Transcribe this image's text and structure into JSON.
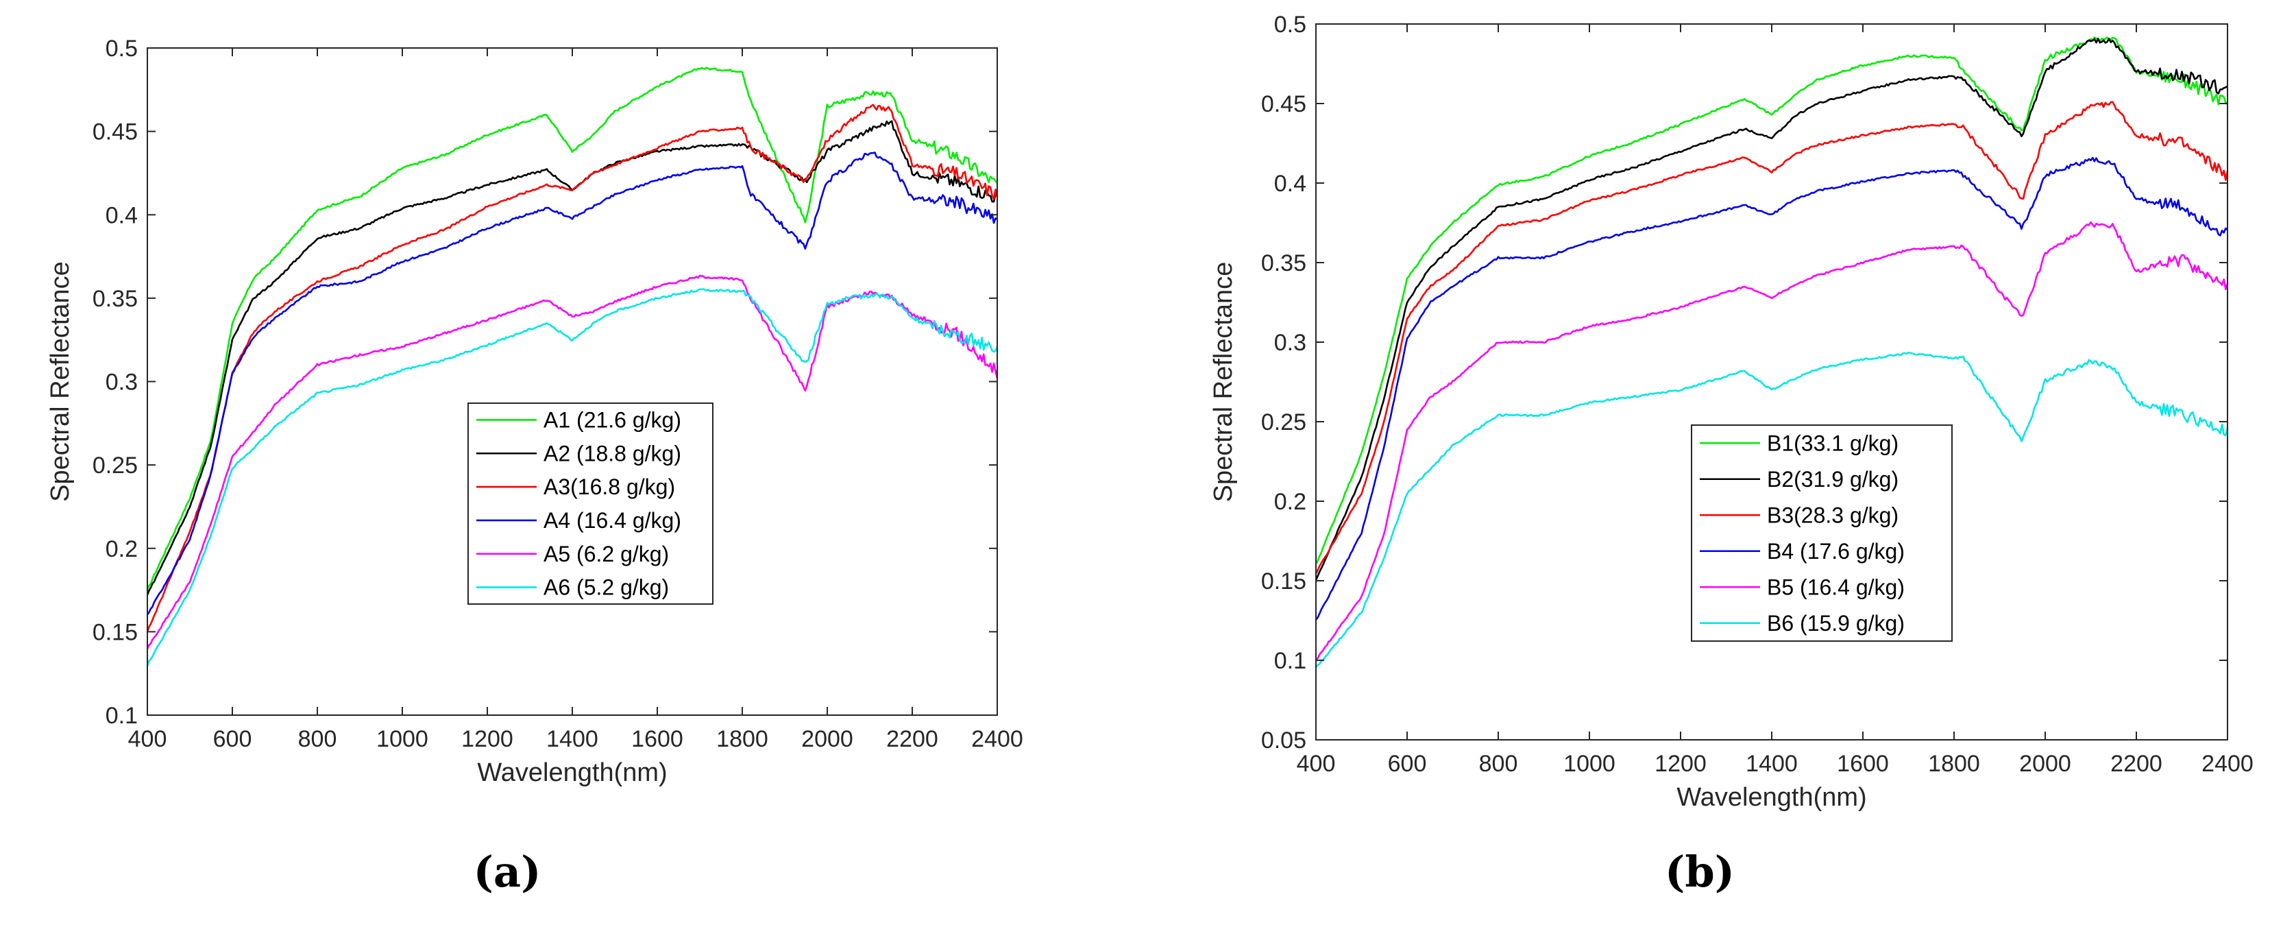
{
  "chart_data": [
    {
      "type": "line",
      "panel": "a",
      "caption": "(a)",
      "xlabel": "Wavelength(nm)",
      "ylabel": "Spectral Reflectance",
      "xlim": [
        400,
        2400
      ],
      "ylim": [
        0.1,
        0.5
      ],
      "xticks": [
        400,
        600,
        800,
        1000,
        1200,
        1400,
        1600,
        1800,
        2000,
        2200,
        2400
      ],
      "yticks": [
        0.1,
        0.15,
        0.2,
        0.25,
        0.3,
        0.35,
        0.4,
        0.45,
        0.5
      ],
      "ytick_labels": [
        "0.1",
        "0.15",
        "0.2",
        "0.25",
        "0.3",
        "0.35",
        "0.4",
        "0.45",
        "0.5"
      ],
      "x": [
        400,
        500,
        550,
        600,
        650,
        700,
        800,
        900,
        1000,
        1100,
        1200,
        1340,
        1400,
        1450,
        1500,
        1600,
        1700,
        1800,
        1820,
        1950,
        2000,
        2100,
        2150,
        2200,
        2300,
        2400
      ],
      "series": [
        {
          "name": "A1 (21.6 g/kg)",
          "color": "#00ee00",
          "values": [
            0.175,
            0.23,
            0.265,
            0.335,
            0.362,
            0.374,
            0.403,
            0.411,
            0.428,
            0.436,
            0.448,
            0.46,
            0.438,
            0.448,
            0.462,
            0.477,
            0.488,
            0.486,
            0.468,
            0.395,
            0.465,
            0.473,
            0.472,
            0.445,
            0.436,
            0.418
          ]
        },
        {
          "name": "A2 (18.8 g/kg)",
          "color": "#000000",
          "values": [
            0.172,
            0.225,
            0.262,
            0.325,
            0.35,
            0.36,
            0.386,
            0.392,
            0.404,
            0.41,
            0.418,
            0.427,
            0.415,
            0.425,
            0.431,
            0.438,
            0.441,
            0.442,
            0.44,
            0.42,
            0.438,
            0.451,
            0.456,
            0.425,
            0.42,
            0.41
          ]
        },
        {
          "name": "A3(16.8 g/kg)",
          "color": "#ff0000",
          "values": [
            0.15,
            0.21,
            0.245,
            0.305,
            0.33,
            0.342,
            0.36,
            0.369,
            0.382,
            0.391,
            0.405,
            0.418,
            0.415,
            0.425,
            0.43,
            0.44,
            0.45,
            0.452,
            0.44,
            0.42,
            0.445,
            0.465,
            0.463,
            0.43,
            0.425,
            0.412
          ]
        },
        {
          "name": "A4 (16.4 g/kg)",
          "color": "#0000ee",
          "values": [
            0.16,
            0.205,
            0.245,
            0.305,
            0.327,
            0.338,
            0.357,
            0.36,
            0.372,
            0.38,
            0.392,
            0.404,
            0.398,
            0.405,
            0.412,
            0.421,
            0.427,
            0.429,
            0.412,
            0.38,
            0.42,
            0.438,
            0.43,
            0.41,
            0.408,
            0.397
          ]
        },
        {
          "name": "A5 (6.2 g/kg)",
          "color": "#ff00ff",
          "values": [
            0.14,
            0.18,
            0.215,
            0.255,
            0.27,
            0.286,
            0.31,
            0.316,
            0.321,
            0.329,
            0.337,
            0.349,
            0.339,
            0.342,
            0.348,
            0.357,
            0.363,
            0.361,
            0.35,
            0.295,
            0.345,
            0.353,
            0.351,
            0.34,
            0.33,
            0.305
          ]
        },
        {
          "name": "A6 (5.2 g/kg)",
          "color": "#00e6e6",
          "values": [
            0.13,
            0.175,
            0.208,
            0.248,
            0.26,
            0.273,
            0.293,
            0.298,
            0.307,
            0.313,
            0.322,
            0.335,
            0.325,
            0.335,
            0.342,
            0.35,
            0.355,
            0.354,
            0.35,
            0.31,
            0.347,
            0.352,
            0.351,
            0.338,
            0.328,
            0.32
          ]
        }
      ]
    },
    {
      "type": "line",
      "panel": "b",
      "caption": "(b)",
      "xlabel": "Wavelength(nm)",
      "ylabel": "Spectral Reflectance",
      "xlim": [
        400,
        2400
      ],
      "ylim": [
        0.05,
        0.5
      ],
      "xticks": [
        400,
        600,
        800,
        1000,
        1200,
        1400,
        1600,
        1800,
        2000,
        2200,
        2400
      ],
      "yticks": [
        0.05,
        0.1,
        0.15,
        0.2,
        0.25,
        0.3,
        0.35,
        0.4,
        0.45,
        0.5
      ],
      "ytick_labels": [
        "0.05",
        "0.1",
        "0.15",
        "0.2",
        "0.25",
        "0.3",
        "0.35",
        "0.4",
        "0.45",
        "0.5"
      ],
      "x": [
        400,
        500,
        550,
        600,
        650,
        700,
        800,
        900,
        1000,
        1100,
        1200,
        1340,
        1400,
        1450,
        1500,
        1600,
        1700,
        1800,
        1820,
        1950,
        2000,
        2100,
        2150,
        2200,
        2300,
        2400
      ],
      "series": [
        {
          "name": "B1(33.1 g/kg)",
          "color": "#00ee00",
          "values": [
            0.16,
            0.23,
            0.28,
            0.34,
            0.36,
            0.375,
            0.399,
            0.404,
            0.417,
            0.426,
            0.437,
            0.453,
            0.443,
            0.455,
            0.465,
            0.474,
            0.48,
            0.479,
            0.47,
            0.432,
            0.478,
            0.49,
            0.492,
            0.47,
            0.465,
            0.45
          ]
        },
        {
          "name": "B2(31.9 g/kg)",
          "color": "#000000",
          "values": [
            0.15,
            0.215,
            0.265,
            0.325,
            0.347,
            0.36,
            0.385,
            0.39,
            0.402,
            0.41,
            0.42,
            0.434,
            0.428,
            0.442,
            0.45,
            0.458,
            0.465,
            0.467,
            0.465,
            0.43,
            0.47,
            0.49,
            0.489,
            0.47,
            0.468,
            0.458
          ]
        },
        {
          "name": "B3(28.3 g/kg)",
          "color": "#ff0000",
          "values": [
            0.155,
            0.205,
            0.25,
            0.315,
            0.335,
            0.345,
            0.373,
            0.377,
            0.389,
            0.396,
            0.405,
            0.416,
            0.407,
            0.418,
            0.424,
            0.43,
            0.435,
            0.437,
            0.435,
            0.39,
            0.43,
            0.448,
            0.45,
            0.43,
            0.425,
            0.405
          ]
        },
        {
          "name": "B4 (17.6 g/kg)",
          "color": "#0000ee",
          "values": [
            0.125,
            0.18,
            0.235,
            0.302,
            0.325,
            0.335,
            0.353,
            0.353,
            0.363,
            0.37,
            0.376,
            0.386,
            0.38,
            0.39,
            0.395,
            0.401,
            0.406,
            0.408,
            0.405,
            0.372,
            0.405,
            0.415,
            0.412,
            0.39,
            0.385,
            0.367
          ]
        },
        {
          "name": "B5 (16.4 g/kg)",
          "color": "#ff00ff",
          "values": [
            0.1,
            0.14,
            0.18,
            0.245,
            0.265,
            0.275,
            0.3,
            0.3,
            0.31,
            0.315,
            0.322,
            0.335,
            0.328,
            0.336,
            0.342,
            0.35,
            0.358,
            0.36,
            0.36,
            0.315,
            0.355,
            0.374,
            0.373,
            0.345,
            0.352,
            0.335
          ]
        },
        {
          "name": "B6 (15.9 g/kg)",
          "color": "#00e6e6",
          "values": [
            0.095,
            0.13,
            0.165,
            0.205,
            0.22,
            0.235,
            0.254,
            0.254,
            0.262,
            0.266,
            0.27,
            0.282,
            0.27,
            0.277,
            0.283,
            0.289,
            0.293,
            0.29,
            0.29,
            0.238,
            0.276,
            0.288,
            0.284,
            0.262,
            0.255,
            0.243
          ]
        }
      ]
    }
  ]
}
